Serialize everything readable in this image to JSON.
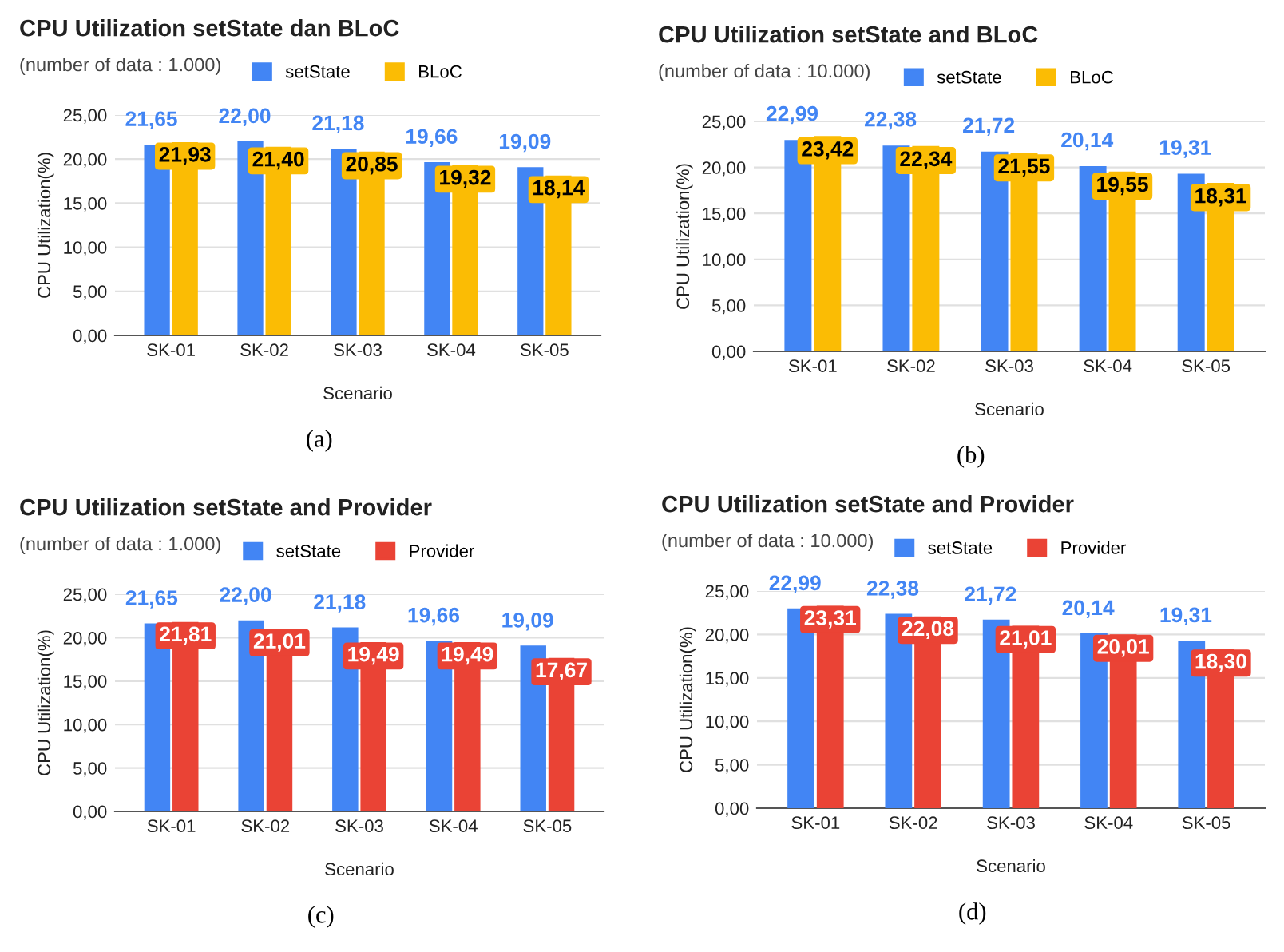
{
  "chart_data": [
    {
      "type": "bar",
      "title": "CPU Utilization setState dan BLoC",
      "subtitle": "(number of data : 1.000)",
      "xlabel": "Scenario",
      "ylabel": "CPU Utilization(%)",
      "categories": [
        "SK-01",
        "SK-02",
        "SK-03",
        "SK-04",
        "SK-05"
      ],
      "series": [
        {
          "name": "setState",
          "color": "#4285f4",
          "values": [
            21.65,
            22.0,
            21.18,
            19.66,
            19.09
          ],
          "value_labels": [
            "21,65",
            "22,00",
            "21,18",
            "19,66",
            "19,09"
          ]
        },
        {
          "name": "BLoC",
          "color": "#fbbc04",
          "values": [
            21.93,
            21.4,
            20.85,
            19.32,
            18.14
          ],
          "value_labels": [
            "21,93",
            "21,40",
            "20,85",
            "19,32",
            "18,14"
          ]
        }
      ],
      "ylim": [
        0,
        25
      ],
      "yticks": [
        {
          "value": 0,
          "label": "0,00"
        },
        {
          "value": 5,
          "label": "5,00"
        },
        {
          "value": 10,
          "label": "10,00"
        },
        {
          "value": 15,
          "label": "15,00"
        },
        {
          "value": 20,
          "label": "20,00"
        },
        {
          "value": 25,
          "label": "25,00"
        }
      ],
      "grid": "y",
      "legend": "top",
      "annotations": [
        "(a)"
      ]
    },
    {
      "type": "bar",
      "title": "CPU Utilization setState and BLoC",
      "subtitle": "(number of data : 10.000)",
      "xlabel": "Scenario",
      "ylabel": "CPU Utilization(%)",
      "categories": [
        "SK-01",
        "SK-02",
        "SK-03",
        "SK-04",
        "SK-05"
      ],
      "series": [
        {
          "name": "setState",
          "color": "#4285f4",
          "values": [
            22.99,
            22.38,
            21.72,
            20.14,
            19.31
          ],
          "value_labels": [
            "22,99",
            "22,38",
            "21,72",
            "20,14",
            "19,31"
          ]
        },
        {
          "name": "BLoC",
          "color": "#fbbc04",
          "values": [
            23.42,
            22.34,
            21.55,
            19.55,
            18.31
          ],
          "value_labels": [
            "23,42",
            "22,34",
            "21,55",
            "19,55",
            "18,31"
          ]
        }
      ],
      "ylim": [
        0,
        25
      ],
      "yticks": [
        {
          "value": 0,
          "label": "0,00"
        },
        {
          "value": 5,
          "label": "5,00"
        },
        {
          "value": 10,
          "label": "10,00"
        },
        {
          "value": 15,
          "label": "15,00"
        },
        {
          "value": 20,
          "label": "20,00"
        },
        {
          "value": 25,
          "label": "25,00"
        }
      ],
      "grid": "y",
      "legend": "top",
      "annotations": [
        "(b)"
      ]
    },
    {
      "type": "bar",
      "title": "CPU Utilization setState and Provider",
      "subtitle": "(number of data : 1.000)",
      "xlabel": "Scenario",
      "ylabel": "CPU Utilization(%)",
      "categories": [
        "SK-01",
        "SK-02",
        "SK-03",
        "SK-04",
        "SK-05"
      ],
      "series": [
        {
          "name": "setState",
          "color": "#4285f4",
          "values": [
            21.65,
            22.0,
            21.18,
            19.66,
            19.09
          ],
          "value_labels": [
            "21,65",
            "22,00",
            "21,18",
            "19,66",
            "19,09"
          ]
        },
        {
          "name": "Provider",
          "color": "#ea4335",
          "values": [
            21.81,
            21.01,
            19.49,
            19.49,
            17.67
          ],
          "value_labels": [
            "21,81",
            "21,01",
            "19,49",
            "19,49",
            "17,67"
          ]
        }
      ],
      "ylim": [
        0,
        25
      ],
      "yticks": [
        {
          "value": 0,
          "label": "0,00"
        },
        {
          "value": 5,
          "label": "5,00"
        },
        {
          "value": 10,
          "label": "10,00"
        },
        {
          "value": 15,
          "label": "15,00"
        },
        {
          "value": 20,
          "label": "20,00"
        },
        {
          "value": 25,
          "label": "25,00"
        }
      ],
      "grid": "y",
      "legend": "top",
      "annotations": [
        "(c)"
      ]
    },
    {
      "type": "bar",
      "title": "CPU Utilization setState and Provider",
      "subtitle": "(number of data : 10.000)",
      "xlabel": "Scenario",
      "ylabel": "CPU Utilization(%)",
      "categories": [
        "SK-01",
        "SK-02",
        "SK-03",
        "SK-04",
        "SK-05"
      ],
      "series": [
        {
          "name": "setState",
          "color": "#4285f4",
          "values": [
            22.99,
            22.38,
            21.72,
            20.14,
            19.31
          ],
          "value_labels": [
            "22,99",
            "22,38",
            "21,72",
            "20,14",
            "19,31"
          ]
        },
        {
          "name": "Provider",
          "color": "#ea4335",
          "values": [
            23.31,
            22.08,
            21.01,
            20.01,
            18.3
          ],
          "value_labels": [
            "23,31",
            "22,08",
            "21,01",
            "20,01",
            "18,30"
          ]
        }
      ],
      "ylim": [
        0,
        25
      ],
      "yticks": [
        {
          "value": 0,
          "label": "0,00"
        },
        {
          "value": 5,
          "label": "5,00"
        },
        {
          "value": 10,
          "label": "10,00"
        },
        {
          "value": 15,
          "label": "15,00"
        },
        {
          "value": 20,
          "label": "20,00"
        },
        {
          "value": 25,
          "label": "25,00"
        }
      ],
      "grid": "y",
      "legend": "top",
      "annotations": [
        "(d)"
      ]
    }
  ]
}
